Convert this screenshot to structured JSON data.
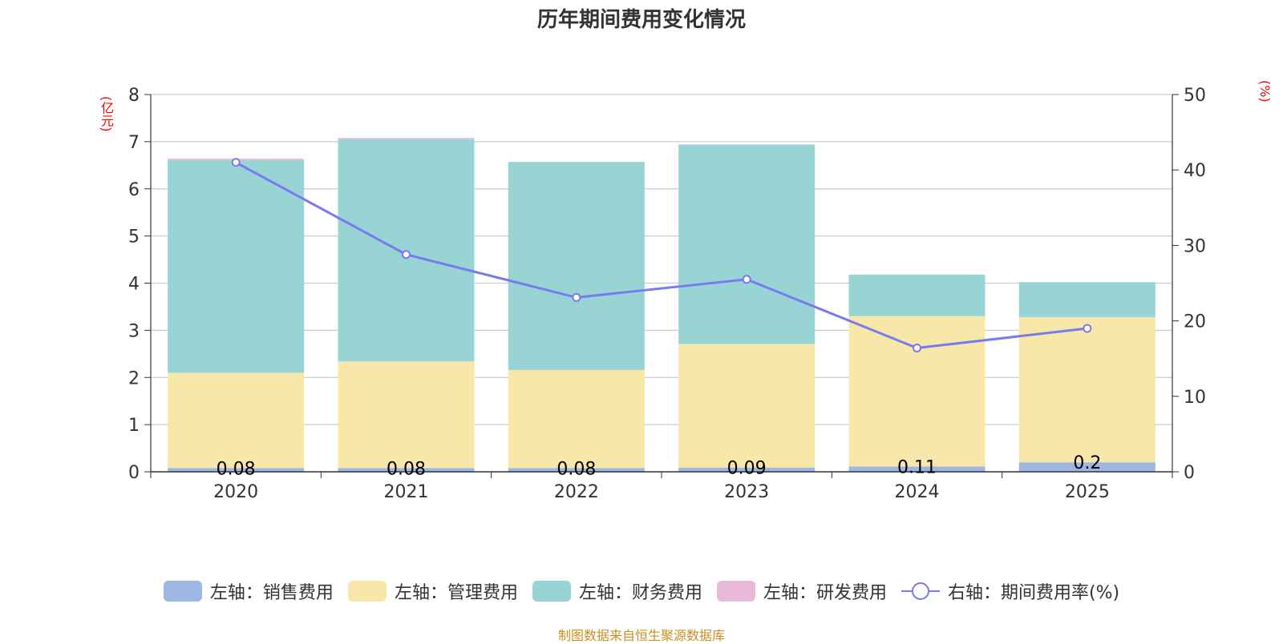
{
  "chart_data": {
    "type": "bar",
    "title": "历年期间费用变化情况",
    "categories": [
      "2020",
      "2021",
      "2022",
      "2023",
      "2024",
      "2025"
    ],
    "left_axis": {
      "unit": "(亿元)",
      "ylim": [
        0,
        8
      ],
      "ticks": [
        "0",
        "1",
        "2",
        "3",
        "4",
        "5",
        "6",
        "7",
        "8"
      ]
    },
    "right_axis": {
      "unit": "(%)",
      "ylim": [
        0,
        50
      ],
      "ticks": [
        "0",
        "10",
        "20",
        "30",
        "40",
        "50"
      ]
    },
    "grid": true,
    "series": [
      {
        "name": "左轴：销售费用",
        "axis": "left",
        "type": "stacked-bar",
        "color": "#9db6e2",
        "values": [
          0.08,
          0.08,
          0.08,
          0.09,
          0.11,
          0.2
        ],
        "value_labels": [
          "0.08",
          "0.08",
          "0.08",
          "0.09",
          "0.11",
          "0.2"
        ]
      },
      {
        "name": "左轴：管理费用",
        "axis": "left",
        "type": "stacked-bar",
        "color": "#f7e7a8",
        "values": [
          2.02,
          2.26,
          2.08,
          2.62,
          3.19,
          3.08
        ]
      },
      {
        "name": "左轴：财务费用",
        "axis": "left",
        "type": "stacked-bar",
        "color": "#98d4d4",
        "values": [
          4.51,
          4.71,
          4.41,
          4.23,
          0.88,
          0.74
        ]
      },
      {
        "name": "左轴：研发费用",
        "axis": "left",
        "type": "stacked-bar",
        "color": "#e8b9d9",
        "values": [
          0.03,
          0.03,
          0,
          0,
          0,
          0
        ]
      },
      {
        "name": "右轴：期间费用率(%)",
        "axis": "right",
        "type": "line",
        "color": "#7a7af0",
        "values": [
          41.0,
          28.8,
          23.1,
          25.5,
          16.4,
          19.0
        ]
      }
    ],
    "legend_position": "bottom"
  },
  "footer": "制图数据来自恒生聚源数据库"
}
